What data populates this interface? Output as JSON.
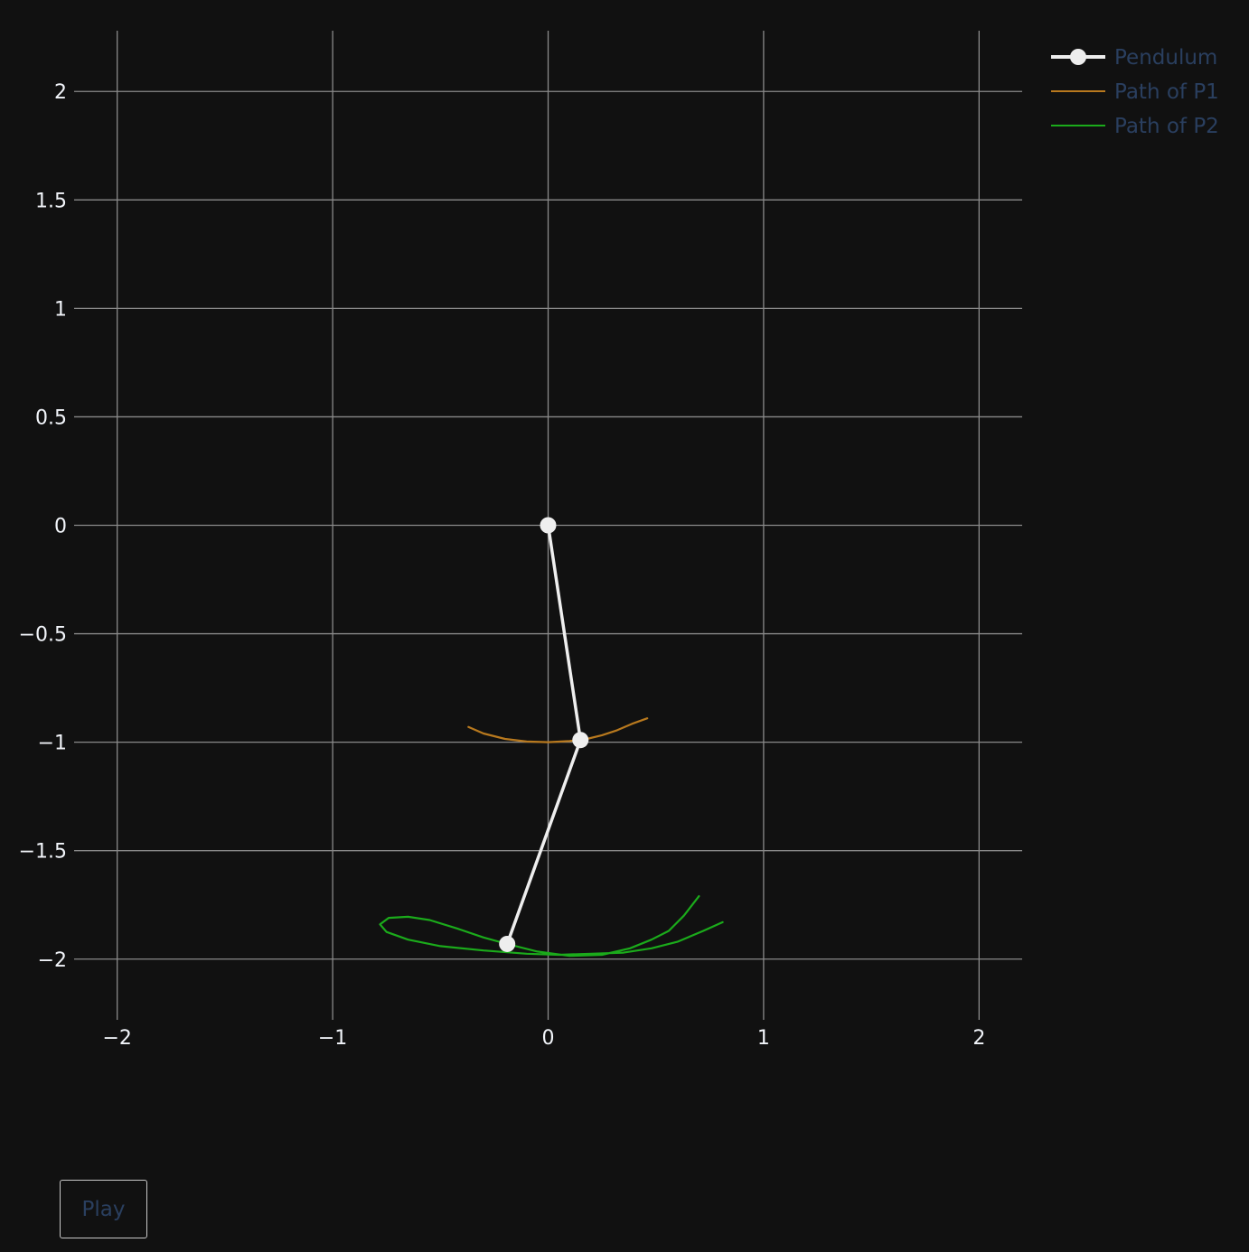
{
  "chart_data": {
    "type": "line",
    "title": "",
    "xlabel": "",
    "ylabel": "",
    "xlim": [
      -2.2,
      2.2
    ],
    "ylim": [
      -2.28,
      2.28
    ],
    "x_ticks": [
      -2,
      -1,
      0,
      1,
      2
    ],
    "x_tick_labels": [
      "−2",
      "−1",
      "0",
      "1",
      "2"
    ],
    "y_ticks": [
      2,
      1.5,
      1,
      0.5,
      0,
      -0.5,
      -1,
      -1.5,
      -2
    ],
    "y_tick_labels": [
      "2",
      "1.5",
      "1",
      "0.5",
      "0",
      "−0.5",
      "−1",
      "−1.5",
      "−2"
    ],
    "grid": true,
    "legend_position": "top-right",
    "colors": {
      "background": "#111111",
      "grid": "#8a8a8a",
      "tick_text": "#f2f5fa",
      "legend_text": "#2a3f5f"
    },
    "series": [
      {
        "name": "Pendulum",
        "mode": "lines+markers",
        "color": "#eeeeee",
        "x": [
          0,
          0.15,
          -0.19
        ],
        "y": [
          0,
          -0.99,
          -1.93
        ]
      },
      {
        "name": "Path of P1",
        "mode": "lines",
        "color": "#b8791e",
        "x": [
          -0.37,
          -0.3,
          -0.2,
          -0.1,
          0.0,
          0.1,
          0.18,
          0.25,
          0.32,
          0.39,
          0.46
        ],
        "y": [
          -0.93,
          -0.96,
          -0.985,
          -0.997,
          -1.0,
          -0.995,
          -0.985,
          -0.968,
          -0.945,
          -0.915,
          -0.89
        ]
      },
      {
        "name": "Path of P2",
        "mode": "lines",
        "color": "#1bab1b",
        "x": [
          0.81,
          0.72,
          0.6,
          0.48,
          0.35,
          0.2,
          0.05,
          -0.1,
          -0.3,
          -0.5,
          -0.65,
          -0.75,
          -0.78,
          -0.74,
          -0.65,
          -0.55,
          -0.42,
          -0.3,
          -0.19,
          -0.05,
          0.1,
          0.25,
          0.38,
          0.48,
          0.56,
          0.63,
          0.7
        ],
        "y": [
          -1.83,
          -1.87,
          -1.92,
          -1.95,
          -1.97,
          -1.975,
          -1.98,
          -1.975,
          -1.96,
          -1.94,
          -1.91,
          -1.875,
          -1.84,
          -1.81,
          -1.805,
          -1.82,
          -1.86,
          -1.9,
          -1.93,
          -1.965,
          -1.985,
          -1.98,
          -1.95,
          -1.91,
          -1.87,
          -1.8,
          -1.71
        ]
      }
    ]
  },
  "controls": {
    "play_label": "Play"
  }
}
